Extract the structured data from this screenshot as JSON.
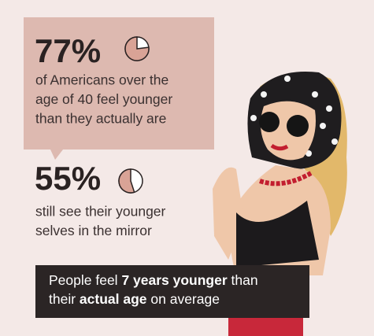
{
  "stats": [
    {
      "value": 77,
      "value_label": "77%",
      "lines": [
        "of Americans over the",
        "age of 40 feel younger",
        "than they actually are"
      ]
    },
    {
      "value": 55,
      "value_label": "55%",
      "lines": [
        "still see their younger",
        "selves in the mirror"
      ]
    }
  ],
  "callout": {
    "lines": [
      [
        {
          "text": "People feel ",
          "bold": false
        },
        {
          "text": "7 years younger",
          "bold": true
        },
        {
          "text": " than",
          "bold": false
        }
      ],
      [
        {
          "text": "their ",
          "bold": false
        },
        {
          "text": "actual age",
          "bold": true
        },
        {
          "text": " on average",
          "bold": false
        }
      ]
    ]
  }
}
